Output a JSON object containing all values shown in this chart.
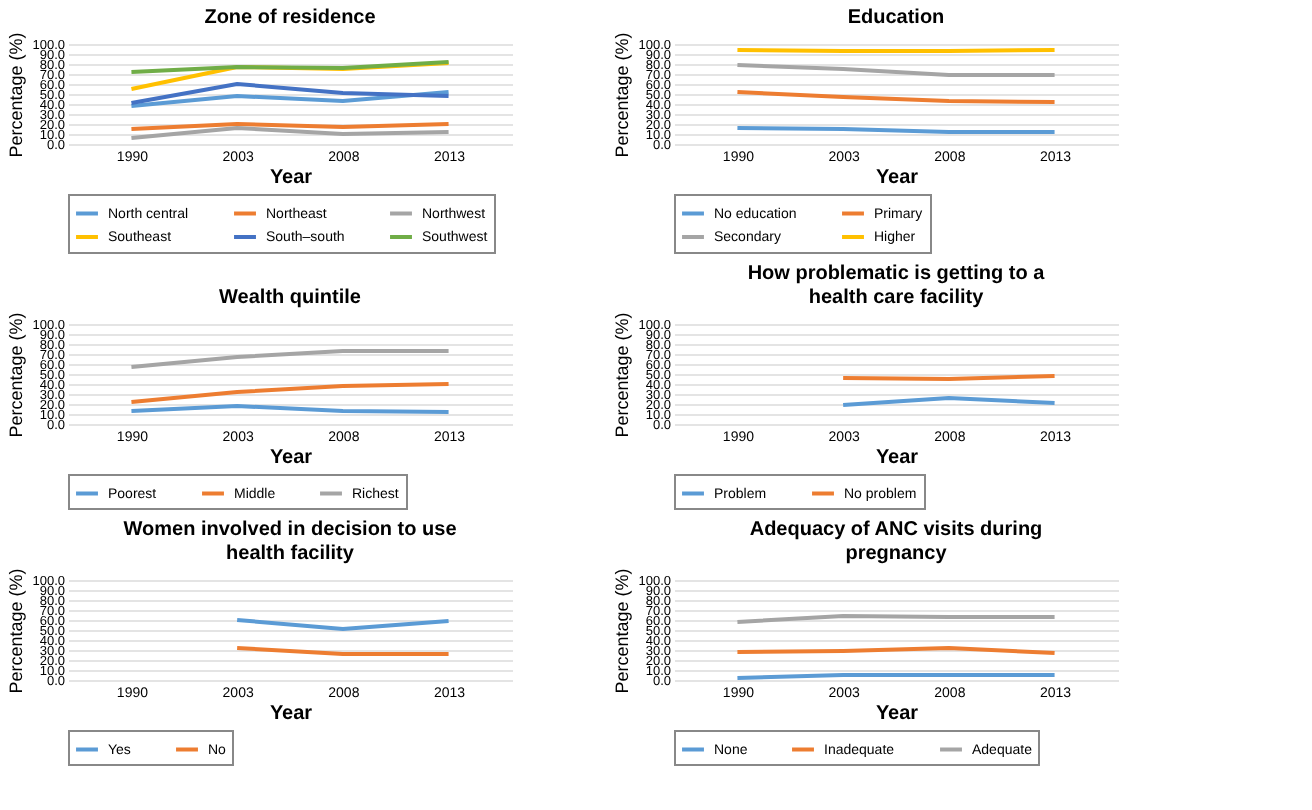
{
  "chart_data": [
    {
      "type": "line",
      "title": "Zone of residence",
      "xlabel": "Year",
      "ylabel": "Percentage (%)",
      "categories": [
        "1990",
        "2003",
        "2008",
        "2013"
      ],
      "ylim": [
        0,
        100
      ],
      "yticks": [
        {
          "value": 0,
          "label": "0.0"
        },
        {
          "value": 10,
          "label": "10.0"
        },
        {
          "value": 20,
          "label": "20.0"
        },
        {
          "value": 30,
          "label": "30.0"
        },
        {
          "value": 40,
          "label": "40.0"
        },
        {
          "value": 50,
          "label": "50.0"
        },
        {
          "value": 60,
          "label": "60.0"
        },
        {
          "value": 70,
          "label": "70.0"
        },
        {
          "value": 80,
          "label": "80.0"
        },
        {
          "value": 90,
          "label": "90.0"
        },
        {
          "value": 100,
          "label": "100.0"
        }
      ],
      "grid": "y",
      "legend": "bottom",
      "series": [
        {
          "name": "North central",
          "color": "#5b9bd5",
          "values": [
            38,
            48,
            43,
            52
          ]
        },
        {
          "name": "Northeast",
          "color": "#ed7d31",
          "values": [
            15,
            20,
            17,
            20
          ]
        },
        {
          "name": "Northwest",
          "color": "#a5a5a5",
          "values": [
            6,
            16,
            10,
            12
          ]
        },
        {
          "name": "Southeast",
          "color": "#ffc000",
          "values": [
            55,
            77,
            75,
            81
          ]
        },
        {
          "name": "South–south",
          "color": "#4472c4",
          "values": [
            41,
            60,
            51,
            48
          ]
        },
        {
          "name": "Southwest",
          "color": "#70ad47",
          "values": [
            72,
            77,
            76,
            82
          ]
        }
      ]
    },
    {
      "type": "line",
      "title": "Education",
      "xlabel": "Year",
      "ylabel": "Percentage (%)",
      "categories": [
        "1990",
        "2003",
        "2008",
        "2013"
      ],
      "ylim": [
        0,
        100
      ],
      "yticks": [
        {
          "value": 0,
          "label": "0.0"
        },
        {
          "value": 10,
          "label": "10.0"
        },
        {
          "value": 20,
          "label": "20.0"
        },
        {
          "value": 30,
          "label": "30.0"
        },
        {
          "value": 40,
          "label": "40.0"
        },
        {
          "value": 50,
          "label": "50.0"
        },
        {
          "value": 60,
          "label": "60.0"
        },
        {
          "value": 70,
          "label": "70.0"
        },
        {
          "value": 80,
          "label": "80.0"
        },
        {
          "value": 90,
          "label": "90.0"
        },
        {
          "value": 100,
          "label": "100.0"
        }
      ],
      "grid": "y",
      "legend": "bottom",
      "series": [
        {
          "name": "No education",
          "color": "#5b9bd5",
          "values": [
            16,
            15,
            12,
            12
          ]
        },
        {
          "name": "Primary",
          "color": "#ed7d31",
          "values": [
            52,
            47,
            43,
            42
          ]
        },
        {
          "name": "Secondary",
          "color": "#a5a5a5",
          "values": [
            79,
            75,
            69,
            69
          ]
        },
        {
          "name": "Higher",
          "color": "#ffc000",
          "values": [
            94,
            93,
            93,
            94
          ]
        }
      ]
    },
    {
      "type": "line",
      "title": "Wealth quintile",
      "xlabel": "Year",
      "ylabel": "Percentage (%)",
      "categories": [
        "1990",
        "2003",
        "2008",
        "2013"
      ],
      "ylim": [
        0,
        100
      ],
      "yticks": [
        {
          "value": 0,
          "label": "0.0"
        },
        {
          "value": 10,
          "label": "10.0"
        },
        {
          "value": 20,
          "label": "20.0"
        },
        {
          "value": 30,
          "label": "30.0"
        },
        {
          "value": 40,
          "label": "40.0"
        },
        {
          "value": 50,
          "label": "50.0"
        },
        {
          "value": 60,
          "label": "60.0"
        },
        {
          "value": 70,
          "label": "70.0"
        },
        {
          "value": 80,
          "label": "80.0"
        },
        {
          "value": 90,
          "label": "90.0"
        },
        {
          "value": 100,
          "label": "100.0"
        }
      ],
      "grid": "y",
      "legend": "bottom",
      "series": [
        {
          "name": "Poorest",
          "color": "#5b9bd5",
          "values": [
            13,
            18,
            13,
            12
          ]
        },
        {
          "name": "Middle",
          "color": "#ed7d31",
          "values": [
            22,
            32,
            38,
            40
          ]
        },
        {
          "name": "Richest",
          "color": "#a5a5a5",
          "values": [
            57,
            67,
            73,
            73
          ]
        }
      ]
    },
    {
      "type": "line",
      "title": "How problematic is getting to a health care facility",
      "xlabel": "Year",
      "ylabel": "Percentage (%)",
      "categories": [
        "1990",
        "2003",
        "2008",
        "2013"
      ],
      "ylim": [
        0,
        100
      ],
      "yticks": [
        {
          "value": 0,
          "label": "0.0"
        },
        {
          "value": 10,
          "label": "10.0"
        },
        {
          "value": 20,
          "label": "20.0"
        },
        {
          "value": 30,
          "label": "30.0"
        },
        {
          "value": 40,
          "label": "40.0"
        },
        {
          "value": 50,
          "label": "50.0"
        },
        {
          "value": 60,
          "label": "60.0"
        },
        {
          "value": 70,
          "label": "70.0"
        },
        {
          "value": 80,
          "label": "80.0"
        },
        {
          "value": 90,
          "label": "90.0"
        },
        {
          "value": 100,
          "label": "100.0"
        }
      ],
      "grid": "y",
      "legend": "bottom",
      "series": [
        {
          "name": "Problem",
          "color": "#5b9bd5",
          "values": [
            null,
            19,
            26,
            21
          ]
        },
        {
          "name": "No problem",
          "color": "#ed7d31",
          "values": [
            null,
            46,
            45,
            48
          ]
        }
      ]
    },
    {
      "type": "line",
      "title": "Women involved in decision to use health facility",
      "xlabel": "Year",
      "ylabel": "Percentage (%)",
      "categories": [
        "1990",
        "2003",
        "2008",
        "2013"
      ],
      "ylim": [
        0,
        100
      ],
      "yticks": [
        {
          "value": 0,
          "label": "0.0"
        },
        {
          "value": 10,
          "label": "10.0"
        },
        {
          "value": 20,
          "label": "20.0"
        },
        {
          "value": 30,
          "label": "30.0"
        },
        {
          "value": 40,
          "label": "40.0"
        },
        {
          "value": 50,
          "label": "50.0"
        },
        {
          "value": 60,
          "label": "60.0"
        },
        {
          "value": 70,
          "label": "70.0"
        },
        {
          "value": 80,
          "label": "80.0"
        },
        {
          "value": 90,
          "label": "90.0"
        },
        {
          "value": 100,
          "label": "100.0"
        }
      ],
      "grid": "y",
      "legend": "bottom",
      "series": [
        {
          "name": "Yes",
          "color": "#5b9bd5",
          "values": [
            null,
            60,
            51,
            59
          ]
        },
        {
          "name": "No",
          "color": "#ed7d31",
          "values": [
            null,
            32,
            26,
            26
          ]
        }
      ]
    },
    {
      "type": "line",
      "title": "Adequacy of ANC visits during pregnancy",
      "xlabel": "Year",
      "ylabel": "Percentage (%)",
      "categories": [
        "1990",
        "2003",
        "2008",
        "2013"
      ],
      "ylim": [
        0,
        100
      ],
      "yticks": [
        {
          "value": 0,
          "label": "0.0"
        },
        {
          "value": 10,
          "label": "10.0"
        },
        {
          "value": 20,
          "label": "20.0"
        },
        {
          "value": 30,
          "label": "30.0"
        },
        {
          "value": 40,
          "label": "40.0"
        },
        {
          "value": 50,
          "label": "50.0"
        },
        {
          "value": 60,
          "label": "60.0"
        },
        {
          "value": 70,
          "label": "70.0"
        },
        {
          "value": 80,
          "label": "80.0"
        },
        {
          "value": 90,
          "label": "90.0"
        },
        {
          "value": 100,
          "label": "100.0"
        }
      ],
      "grid": "y",
      "legend": "bottom",
      "series": [
        {
          "name": "None",
          "color": "#5b9bd5",
          "values": [
            2,
            5,
            5,
            5
          ]
        },
        {
          "name": "Inadequate",
          "color": "#ed7d31",
          "values": [
            28,
            29,
            32,
            27
          ]
        },
        {
          "name": "Adequate",
          "color": "#a5a5a5",
          "values": [
            58,
            64,
            63,
            63
          ]
        }
      ]
    }
  ]
}
